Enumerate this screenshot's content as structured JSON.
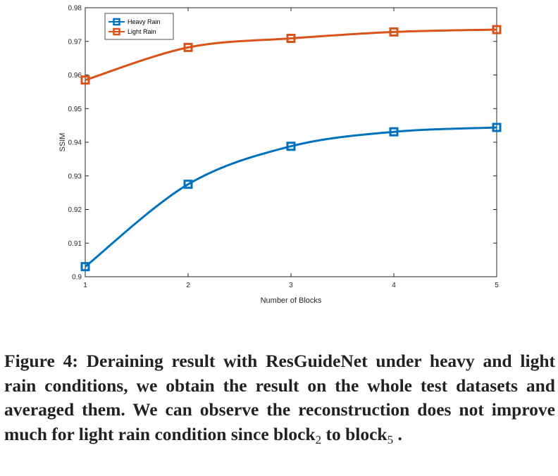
{
  "chart_data": {
    "type": "line",
    "x": [
      1,
      2,
      3,
      4,
      5
    ],
    "series": [
      {
        "name": "Heavy Rain",
        "color": "#0072BD",
        "values": [
          0.903,
          0.9275,
          0.9388,
          0.9431,
          0.9444
        ]
      },
      {
        "name": "Light Rain",
        "color": "#D95319",
        "values": [
          0.9585,
          0.9682,
          0.9709,
          0.9728,
          0.9735
        ]
      }
    ],
    "xlabel": "Number of Blocks",
    "ylabel": "SSIM",
    "xlim": [
      1,
      5
    ],
    "ylim": [
      0.9,
      0.98
    ],
    "xticks": [
      "1",
      "2",
      "3",
      "4",
      "5"
    ],
    "yticks": [
      "0.9",
      "0.91",
      "0.92",
      "0.93",
      "0.94",
      "0.95",
      "0.96",
      "0.97",
      "0.98"
    ],
    "legend_position": "top-left",
    "grid": false
  },
  "caption": {
    "text": "Figure 4: Deraining result with ResGuideNet under heavy and light rain conditions, we obtain the result on the whole test datasets and averaged them. We can observe the reconstruction does not improve much for light rain condition since block",
    "sub1": "2",
    "mid": " to block",
    "sub2": "5",
    "end": " ."
  }
}
